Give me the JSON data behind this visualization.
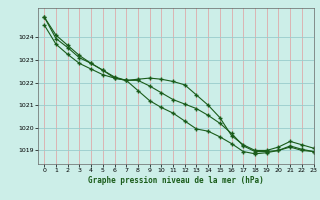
{
  "title": "Graphe pression niveau de la mer (hPa)",
  "bg_color": "#cceee8",
  "grid_color": "#99cccc",
  "line_color": "#1a5c1a",
  "xlim": [
    -0.5,
    23
  ],
  "ylim": [
    1018.4,
    1025.3
  ],
  "yticks": [
    1019,
    1020,
    1021,
    1022,
    1023,
    1024
  ],
  "xticks": [
    0,
    1,
    2,
    3,
    4,
    5,
    6,
    7,
    8,
    9,
    10,
    11,
    12,
    13,
    14,
    15,
    16,
    17,
    18,
    19,
    20,
    21,
    22,
    23
  ],
  "series": [
    [
      1024.9,
      1024.1,
      1023.65,
      1023.2,
      1022.85,
      1022.55,
      1022.25,
      1022.1,
      1022.15,
      1022.2,
      1022.15,
      1022.05,
      1021.9,
      1021.45,
      1021.0,
      1020.45,
      1019.65,
      1019.25,
      1019.0,
      1019.0,
      1019.15,
      1019.4,
      1019.25,
      1019.1
    ],
    [
      1024.9,
      1023.95,
      1023.55,
      1023.1,
      1022.85,
      1022.55,
      1022.2,
      1022.1,
      1022.1,
      1021.85,
      1021.55,
      1021.25,
      1021.05,
      1020.85,
      1020.55,
      1020.2,
      1019.75,
      1019.2,
      1018.95,
      1018.95,
      1019.0,
      1019.2,
      1019.05,
      1018.95
    ],
    [
      1024.55,
      1023.7,
      1023.25,
      1022.85,
      1022.6,
      1022.35,
      1022.2,
      1022.1,
      1021.65,
      1021.2,
      1020.9,
      1020.65,
      1020.3,
      1019.95,
      1019.85,
      1019.6,
      1019.3,
      1018.95,
      1018.85,
      1018.9,
      1019.0,
      1019.15,
      1019.0,
      1018.95
    ]
  ]
}
